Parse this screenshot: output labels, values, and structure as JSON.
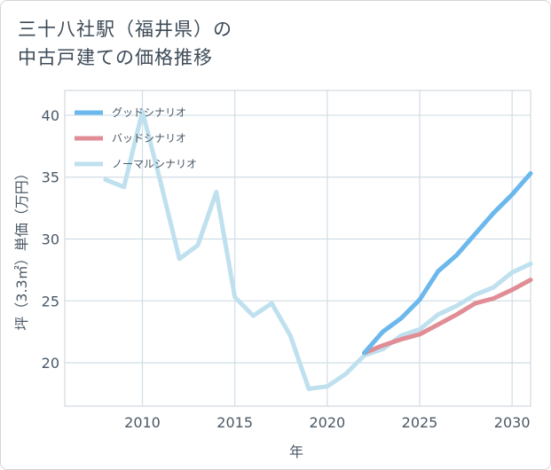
{
  "title": {
    "line1": "三十八社駅（福井県）の",
    "line2": "中古戸建ての価格推移"
  },
  "chart_data": {
    "type": "line",
    "title": "三十八社駅（福井県）の中古戸建ての価格推移",
    "xlabel": "年",
    "ylabel": "坪（3.3㎡）単価（万円）",
    "xlim": [
      2005.8,
      2031
    ],
    "ylim": [
      16.5,
      42
    ],
    "xticks": [
      2010,
      2015,
      2020,
      2025,
      2030
    ],
    "yticks": [
      20,
      25,
      30,
      35,
      40
    ],
    "grid": true,
    "legend_position": "top-left",
    "series": [
      {
        "name": "グッドシナリオ",
        "color": "#6bb8ec",
        "x": [
          2022,
          2023,
          2024,
          2025,
          2026,
          2027,
          2028,
          2029,
          2030,
          2031
        ],
        "values": [
          20.8,
          22.5,
          23.6,
          25.1,
          27.4,
          28.7,
          30.4,
          32.1,
          33.6,
          35.3
        ]
      },
      {
        "name": "バッドシナリオ",
        "color": "#e08d95",
        "x": [
          2022,
          2023,
          2024,
          2025,
          2026,
          2027,
          2028,
          2029,
          2030,
          2031
        ],
        "values": [
          20.8,
          21.4,
          21.9,
          22.3,
          23.1,
          23.9,
          24.8,
          25.2,
          25.9,
          26.7
        ]
      },
      {
        "name": "ノーマルシナリオ",
        "color": "#bfe0ee",
        "x": [
          2008,
          2009,
          2010,
          2011,
          2012,
          2013,
          2014,
          2015,
          2016,
          2017,
          2018,
          2019,
          2020,
          2021,
          2022,
          2023,
          2024,
          2025,
          2026,
          2027,
          2028,
          2029,
          2030,
          2031
        ],
        "values": [
          34.8,
          34.2,
          40.3,
          34.5,
          28.4,
          29.5,
          33.8,
          25.3,
          23.8,
          24.8,
          22.2,
          17.9,
          18.1,
          19.1,
          20.6,
          21.1,
          22.2,
          22.7,
          23.9,
          24.6,
          25.5,
          26.1,
          27.3,
          28.0
        ]
      }
    ]
  }
}
